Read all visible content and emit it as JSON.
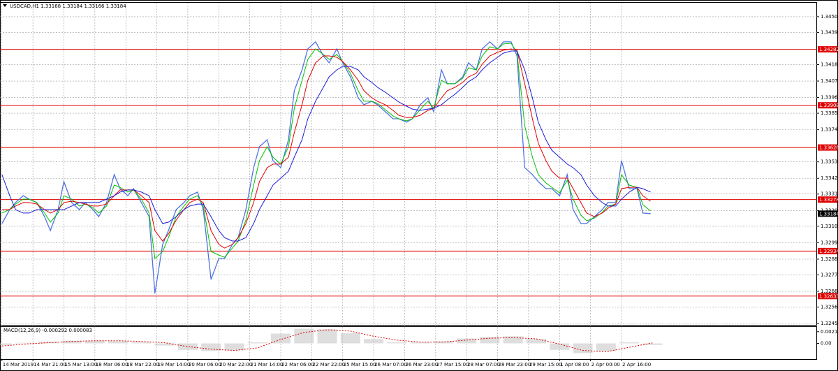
{
  "chart_data": [
    {
      "type": "line",
      "title": "USDCAD,H1  1.33168 1.33184 1.33166 1.33184",
      "x": [
        0,
        4,
        7,
        11,
        14,
        18,
        22,
        25,
        29,
        32,
        36,
        40,
        43,
        47,
        50,
        54,
        58,
        61,
        65,
        68,
        72,
        76,
        79,
        83,
        86,
        90,
        94,
        97,
        101,
        104,
        108,
        112,
        115,
        119,
        122,
        126,
        130,
        133,
        137,
        140,
        144,
        148,
        151,
        155,
        158,
        162,
        166,
        169,
        173,
        176,
        180,
        184,
        187,
        191,
        194,
        198,
        202,
        205,
        209,
        212,
        216,
        220,
        223,
        227,
        230,
        234,
        238,
        241,
        245,
        248,
        252,
        256,
        259,
        263,
        266,
        270,
        274,
        277,
        281,
        284,
        288,
        292,
        295,
        299,
        302,
        306,
        310,
        313,
        317,
        320,
        324,
        328,
        331,
        335
      ],
      "xlim": [
        -1,
        421
      ],
      "xticks": [
        {
          "value": 0,
          "label": "14 Mar 2019"
        },
        {
          "value": 16,
          "label": "14 Mar 21:00"
        },
        {
          "value": 32,
          "label": "15 Mar 13:00"
        },
        {
          "value": 48,
          "label": "18 Mar 06:00"
        },
        {
          "value": 64,
          "label": "18 Mar 22:00"
        },
        {
          "value": 80,
          "label": "19 Mar 14:00"
        },
        {
          "value": 96,
          "label": "20 Mar 06:00"
        },
        {
          "value": 112,
          "label": "20 Mar 22:00"
        },
        {
          "value": 128,
          "label": "21 Mar 14:00"
        },
        {
          "value": 144,
          "label": "22 Mar 06:00"
        },
        {
          "value": 160,
          "label": "22 Mar 22:00"
        },
        {
          "value": 176,
          "label": "25 Mar 15:00"
        },
        {
          "value": 192,
          "label": "26 Mar 07:00"
        },
        {
          "value": 208,
          "label": "26 Mar 23:00"
        },
        {
          "value": 224,
          "label": "27 Mar 15:00"
        },
        {
          "value": 240,
          "label": "28 Mar 07:00"
        },
        {
          "value": 256,
          "label": "28 Mar 23:00"
        },
        {
          "value": 272,
          "label": "29 Mar 15:00"
        },
        {
          "value": 288,
          "label": "1 Apr 08:00"
        },
        {
          "value": 304,
          "label": "2 Apr 00:00"
        },
        {
          "value": 320,
          "label": "2 Apr 16:00"
        }
      ],
      "ylim": [
        1.32436,
        1.34593
      ],
      "yticks": [
        {
          "value": 1.345,
          "label": "1.34500"
        },
        1.34395,
        {
          "value": 1.3418,
          "label": "1.34180"
        },
        {
          "value": 1.3407,
          "label": "1.34070"
        },
        {
          "value": 1.3396,
          "label": "1.33960"
        },
        1.33855,
        1.33745,
        {
          "value": 1.3353,
          "label": "1.33530"
        },
        {
          "value": 1.3342,
          "label": "1.33420"
        },
        1.33315,
        1.33205,
        {
          "value": 1.331,
          "label": "1.33100"
        },
        {
          "value": 1.3299,
          "label": "1.32990"
        },
        {
          "value": 1.3288,
          "label": "1.32880"
        },
        1.32775,
        1.32665,
        {
          "value": 1.3256,
          "label": "1.32560"
        },
        {
          "value": 1.3245,
          "label": "1.32450"
        }
      ],
      "grid": true,
      "series": [
        {
          "color": "#4f72e3",
          "values": [
            1.33118,
            1.33211,
            1.33258,
            1.33304,
            1.33281,
            1.33258,
            1.33164,
            1.33071,
            1.33211,
            1.33398,
            1.33258,
            1.33211,
            1.33258,
            1.33211,
            1.33164,
            1.33258,
            1.33445,
            1.33351,
            1.33304,
            1.33351,
            1.33258,
            1.33164,
            1.32651,
            1.32978,
            1.33071,
            1.33211,
            1.33258,
            1.33304,
            1.33328,
            1.33211,
            1.32744,
            1.32884,
            1.32884,
            1.32978,
            1.33024,
            1.33211,
            1.33491,
            1.33631,
            1.33678,
            1.33538,
            1.33491,
            1.33678,
            1.34005,
            1.34145,
            1.34285,
            1.34332,
            1.34238,
            1.34192,
            1.34285,
            1.34192,
            1.34098,
            1.33958,
            1.33912,
            1.33935,
            1.33912,
            1.33865,
            1.33818,
            1.33818,
            1.33795,
            1.33818,
            1.33912,
            1.33958,
            1.33865,
            1.34145,
            1.34052,
            1.34052,
            1.34098,
            1.34192,
            1.34145,
            1.34285,
            1.34332,
            1.34285,
            1.34332,
            1.34332,
            1.34238,
            1.33491,
            1.33445,
            1.33398,
            1.33351,
            1.33351,
            1.33304,
            1.33445,
            1.33211,
            1.33118,
            1.33118,
            1.33164,
            1.33211,
            1.33258,
            1.33258,
            1.33538,
            1.33351,
            1.33351,
            1.33188,
            1.33184
          ]
        },
        {
          "color": "#00c000",
          "values": [
            1.33188,
            1.33211,
            1.33248,
            1.33281,
            1.33281,
            1.33258,
            1.33188,
            1.33127,
            1.33188,
            1.33304,
            1.33281,
            1.33235,
            1.33248,
            1.33225,
            1.33188,
            1.33235,
            1.33375,
            1.3336,
            1.33328,
            1.33342,
            1.33281,
            1.33188,
            1.32884,
            1.32931,
            1.33024,
            1.33164,
            1.33235,
            1.33281,
            1.33304,
            1.33235,
            1.32931,
            1.32907,
            1.32893,
            1.32954,
            1.33001,
            1.33141,
            1.33375,
            1.33538,
            1.33631,
            1.33561,
            1.33515,
            1.33631,
            1.33888,
            1.34075,
            1.34215,
            1.34285,
            1.34248,
            1.34215,
            1.34248,
            1.34201,
            1.34122,
            1.34005,
            1.33935,
            1.33935,
            1.33921,
            1.33879,
            1.33837,
            1.33818,
            1.33804,
            1.33818,
            1.33879,
            1.33935,
            1.33888,
            1.34075,
            1.34052,
            1.34052,
            1.34089,
            1.34159,
            1.34145,
            1.34238,
            1.34299,
            1.34285,
            1.34318,
            1.34322,
            1.34262,
            1.33771,
            1.33561,
            1.33445,
            1.33389,
            1.3336,
            1.33323,
            1.33407,
            1.33281,
            1.33174,
            1.33136,
            1.33155,
            1.33192,
            1.33235,
            1.33248,
            1.33445,
            1.33375,
            1.3336,
            1.33244,
            1.33202
          ]
        },
        {
          "color": "#e00000",
          "values": [
            1.33211,
            1.33211,
            1.33235,
            1.33258,
            1.33258,
            1.33248,
            1.33211,
            1.33188,
            1.33211,
            1.33258,
            1.33267,
            1.33258,
            1.33248,
            1.33235,
            1.33235,
            1.33248,
            1.33304,
            1.33342,
            1.33342,
            1.33342,
            1.33304,
            1.33258,
            1.33071,
            1.33001,
            1.33048,
            1.33141,
            1.33211,
            1.33258,
            1.33281,
            1.33258,
            1.33071,
            1.32978,
            1.32954,
            1.32978,
            1.33024,
            1.33118,
            1.33258,
            1.33398,
            1.33491,
            1.33515,
            1.33515,
            1.33561,
            1.33725,
            1.33912,
            1.34075,
            1.34192,
            1.34238,
            1.34238,
            1.34229,
            1.34201,
            1.34145,
            1.34075,
            1.34005,
            1.33958,
            1.33935,
            1.33912,
            1.33874,
            1.33841,
            1.33827,
            1.33827,
            1.33841,
            1.33874,
            1.33888,
            1.33958,
            1.34005,
            1.34028,
            1.34061,
            1.34098,
            1.34122,
            1.34182,
            1.34238,
            1.34262,
            1.34276,
            1.34285,
            1.34276,
            1.34052,
            1.33818,
            1.33655,
            1.33538,
            1.33468,
            1.33421,
            1.33421,
            1.33351,
            1.33258,
            1.33188,
            1.33164,
            1.33188,
            1.3322,
            1.33248,
            1.33351,
            1.3336,
            1.3336,
            1.33304,
            1.33267
          ]
        },
        {
          "color": "#1c1cd6",
          "values": [
            1.33445,
            1.33304,
            1.33211,
            1.33188,
            1.33188,
            1.33211,
            1.33211,
            1.33211,
            1.33211,
            1.33211,
            1.33235,
            1.33258,
            1.33258,
            1.33258,
            1.33258,
            1.33281,
            1.33304,
            1.33328,
            1.33342,
            1.33342,
            1.33328,
            1.33304,
            1.33211,
            1.33118,
            1.33127,
            1.33164,
            1.33211,
            1.33235,
            1.33248,
            1.33248,
            1.33164,
            1.33071,
            1.33024,
            1.33001,
            1.33001,
            1.33024,
            1.33118,
            1.33211,
            1.33304,
            1.33375,
            1.33421,
            1.33468,
            1.33561,
            1.33678,
            1.33818,
            1.33935,
            1.34028,
            1.34098,
            1.34145,
            1.34168,
            1.34168,
            1.34145,
            1.34098,
            1.34061,
            1.34028,
            1.33996,
            1.33958,
            1.3393,
            1.33902,
            1.33883,
            1.33874,
            1.33883,
            1.33888,
            1.33912,
            1.33944,
            1.33982,
            1.34028,
            1.34066,
            1.34098,
            1.34145,
            1.34192,
            1.34229,
            1.34257,
            1.34271,
            1.34271,
            1.34145,
            1.33958,
            1.33795,
            1.33678,
            1.33608,
            1.33561,
            1.33515,
            1.33491,
            1.33445,
            1.33375,
            1.33304,
            1.33258,
            1.33235,
            1.33235,
            1.33281,
            1.33328,
            1.3336,
            1.33351,
            1.33328
          ]
        }
      ],
      "levels": [
        1.34282,
        1.33908,
        1.33626,
        1.33278,
        1.32934,
        1.32633
      ],
      "level_color": "#e00000",
      "current_price": 1.33184
    },
    {
      "type": "macd",
      "title": "MACD(12,26,9) -0.000292 0.000083",
      "x": [
        0,
        12,
        24,
        36,
        48,
        60,
        72,
        84,
        96,
        108,
        120,
        132,
        144,
        156,
        168,
        180,
        192,
        204,
        216,
        228,
        240,
        252,
        264,
        276,
        288,
        300,
        312,
        324,
        336
      ],
      "xlim": [
        -1,
        421
      ],
      "ylim": [
        -0.0029,
        0.00302
      ],
      "yticks": [
        0.002145,
        {
          "value": 0,
          "label": "0.00"
        }
      ],
      "series": [
        {
          "color": "#c8c8c8",
          "values": [
            -0.0003,
            0.0001,
            0.0003,
            0.0005,
            0.0005,
            0.0004,
            0.0002,
            -0.0004,
            -0.0012,
            -0.0014,
            -0.0013,
            0.0002,
            0.0018,
            0.0027,
            0.0026,
            0.0019,
            0.0008,
            0.0002,
            0.0002,
            0.0004,
            0.0009,
            0.0012,
            0.0013,
            0.0008,
            -0.0012,
            -0.0018,
            -0.0014,
            0.0002,
            -0.000292
          ]
        },
        {
          "color": "#e00000",
          "values": [
            -0.00048,
            -0.00012,
            0.00012,
            0.00036,
            0.00048,
            0.00048,
            0.00036,
            0.00012,
            -0.0006,
            -0.00107,
            -0.00131,
            -0.00083,
            0.00071,
            0.00202,
            0.0025,
            0.00226,
            0.00131,
            0.0006,
            0.00024,
            0.00024,
            0.0006,
            0.00095,
            0.00107,
            0.00083,
            -0.00012,
            -0.00131,
            -0.00155,
            -0.00071,
            8.3e-05
          ]
        }
      ]
    }
  ]
}
